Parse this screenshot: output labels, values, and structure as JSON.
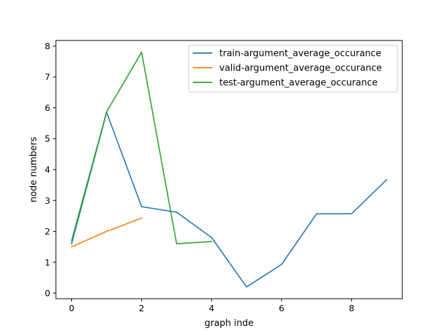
{
  "chart_data": {
    "type": "line",
    "title": "",
    "xlabel": "graph inde",
    "ylabel": "node numbers",
    "xlim": [
      -0.45,
      9.45
    ],
    "ylim": [
      -0.18,
      8.18
    ],
    "xticks": [
      0,
      2,
      4,
      6,
      8
    ],
    "yticks": [
      0,
      1,
      2,
      3,
      4,
      5,
      6,
      7,
      8
    ],
    "grid": false,
    "legend_position": "top-right",
    "series": [
      {
        "name": "train-argument_average_occurance",
        "color": "#1f77b4",
        "x": [
          0,
          1,
          2,
          3,
          4,
          5,
          6,
          7,
          8,
          9
        ],
        "y": [
          1.6,
          5.85,
          2.8,
          2.62,
          1.8,
          0.2,
          0.93,
          2.57,
          2.57,
          3.67
        ]
      },
      {
        "name": "valid-argument_average_occurance",
        "color": "#ff7f0e",
        "x": [
          0,
          1,
          2
        ],
        "y": [
          1.5,
          2.0,
          2.43
        ]
      },
      {
        "name": "test-argument_average_occurance",
        "color": "#2ca02c",
        "x": [
          0,
          1,
          2,
          3,
          4
        ],
        "y": [
          1.7,
          5.87,
          7.8,
          1.6,
          1.67
        ]
      }
    ]
  }
}
